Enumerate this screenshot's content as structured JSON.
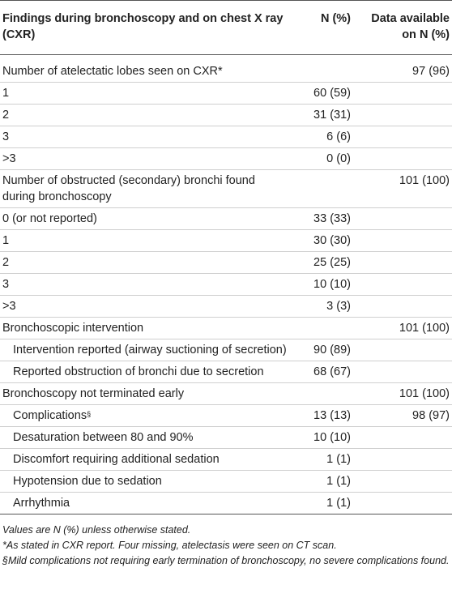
{
  "table": {
    "headers": {
      "findings": "Findings during bronchoscopy and on chest X ray (CXR)",
      "n_pct": "N (%)",
      "available": "Data available on N (%)"
    },
    "rows": [
      {
        "label": "Number of atelectatic lobes seen on CXR*",
        "n": "",
        "avail": "97 (96)",
        "indent": false
      },
      {
        "label": "1",
        "n": "60 (59)",
        "avail": "",
        "indent": false
      },
      {
        "label": "2",
        "n": "31 (31)",
        "avail": "",
        "indent": false
      },
      {
        "label": "3",
        "n": "6 (6)",
        "avail": "",
        "indent": false
      },
      {
        "label": ">3",
        "n": "0 (0)",
        "avail": "",
        "indent": false
      },
      {
        "label": "Number of obstructed (secondary) bronchi found during bronchoscopy",
        "n": "",
        "avail": "101 (100)",
        "indent": false
      },
      {
        "label": "0 (or not reported)",
        "n": "33 (33)",
        "avail": "",
        "indent": false
      },
      {
        "label": "1",
        "n": "30 (30)",
        "avail": "",
        "indent": false
      },
      {
        "label": "2",
        "n": "25 (25)",
        "avail": "",
        "indent": false
      },
      {
        "label": "3",
        "n": "10 (10)",
        "avail": "",
        "indent": false
      },
      {
        "label": ">3",
        "n": "3 (3)",
        "avail": "",
        "indent": false
      },
      {
        "label": "Bronchoscopic intervention",
        "n": "",
        "avail": "101 (100)",
        "indent": false
      },
      {
        "label": "Intervention reported (airway suctioning of secretion)",
        "n": "90 (89)",
        "avail": "",
        "indent": true
      },
      {
        "label": "Reported obstruction of bronchi due to secretion",
        "n": "68 (67)",
        "avail": "",
        "indent": true
      },
      {
        "label": "Bronchoscopy not terminated early",
        "n": "",
        "avail": "101 (100)",
        "indent": false
      },
      {
        "label": "Complications",
        "sup": "§",
        "n": "13 (13)",
        "avail": "98 (97)",
        "indent": true
      },
      {
        "label": "Desaturation between 80 and 90%",
        "n": "10 (10)",
        "avail": "",
        "indent": true
      },
      {
        "label": "Discomfort requiring additional sedation",
        "n": "1 (1)",
        "avail": "",
        "indent": true
      },
      {
        "label": "Hypotension due to sedation",
        "n": "1 (1)",
        "avail": "",
        "indent": true
      },
      {
        "label": "Arrhythmia",
        "n": "1 (1)",
        "avail": "",
        "indent": true
      }
    ]
  },
  "footnotes": [
    "Values are N (%) unless otherwise stated.",
    "*As stated in CXR report. Four missing, atelectasis were seen on CT scan.",
    "§Mild complications not requiring early termination of bronchoscopy, no severe complications found."
  ]
}
